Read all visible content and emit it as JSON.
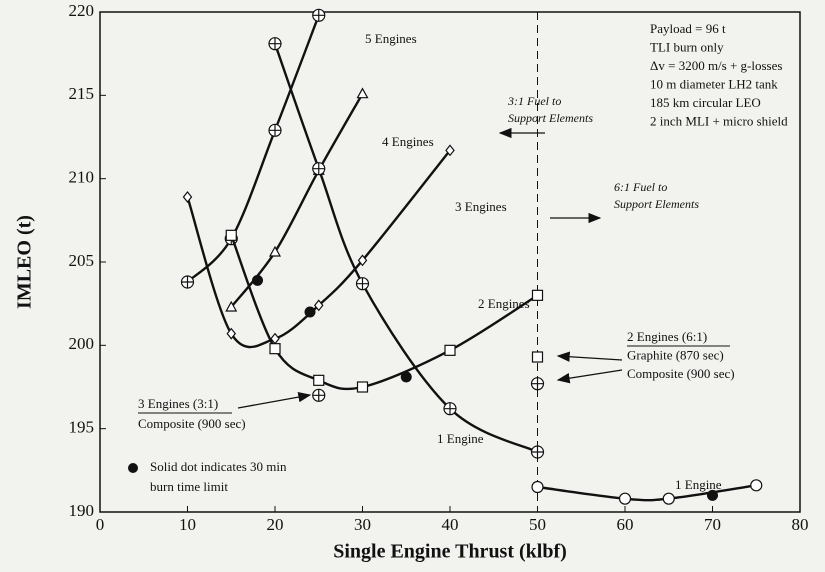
{
  "chart_data": {
    "type": "line",
    "xlabel": "Single Engine Thrust (klbf)",
    "ylabel": "IMLEO (t)",
    "xlim": [
      0,
      80
    ],
    "xticks": [
      0,
      10,
      20,
      30,
      40,
      50,
      60,
      70,
      80
    ],
    "ylim": [
      190,
      220
    ],
    "yticks": [
      190,
      195,
      200,
      205,
      210,
      215,
      220
    ],
    "series": [
      {
        "name": "5 Engines",
        "marker": "circleplus",
        "color": "#111111",
        "x": [
          10,
          15,
          20,
          25
        ],
        "values": [
          203.8,
          206.4,
          212.9,
          219.8
        ]
      },
      {
        "name": "4 Engines",
        "marker": "triangle",
        "color": "#111111",
        "x": [
          15,
          20,
          25,
          30
        ],
        "values": [
          202.3,
          205.6,
          210.5,
          215.1
        ]
      },
      {
        "name": "3 Engines",
        "marker": "diamond",
        "color": "#111111",
        "x": [
          10,
          15,
          20,
          25,
          30,
          40
        ],
        "values": [
          208.9,
          200.7,
          200.4,
          202.4,
          205.1,
          211.7
        ]
      },
      {
        "name": "2 Engines",
        "marker": "square",
        "color": "#111111",
        "x": [
          15,
          20,
          25,
          30,
          40,
          50
        ],
        "values": [
          206.6,
          199.8,
          197.9,
          197.5,
          199.7,
          203.0
        ]
      },
      {
        "name": "1 Engine",
        "marker": "circleplus",
        "color": "#111111",
        "x": [
          20,
          25,
          30,
          40,
          50
        ],
        "values": [
          218.1,
          210.6,
          203.7,
          196.2,
          193.6
        ]
      },
      {
        "name": "1 Engine",
        "marker": "circle",
        "color": "#111111",
        "x": [
          50,
          60,
          65,
          75
        ],
        "values": [
          191.5,
          190.8,
          190.8,
          191.6
        ]
      }
    ],
    "burn_limit_points": {
      "x": [
        18,
        24,
        35,
        70
      ],
      "values": [
        203.9,
        202.0,
        198.1,
        191.0
      ]
    },
    "extra_points": [
      {
        "marker": "square",
        "x": 50,
        "value": 199.3
      },
      {
        "marker": "circleplus",
        "x": 50,
        "value": 197.7
      },
      {
        "marker": "circleplus",
        "x": 25,
        "value": 197.0
      }
    ],
    "divider_x": 50,
    "info_box": [
      "Payload = 96 t",
      "TLI burn only",
      "Δv = 3200 m/s + g-losses",
      "10 m diameter LH2 tank",
      "185 km circular LEO",
      "2 inch MLI + micro shield"
    ],
    "left_region": [
      "3:1 Fuel to",
      "Support Elements"
    ],
    "right_region": [
      "6:1 Fuel to",
      "Support Elements"
    ],
    "annotation_3eng": [
      "3 Engines (3:1)",
      "Composite (900 sec)"
    ],
    "annotation_2eng": [
      "2 Engines (6:1)",
      "Graphite (870 sec)",
      "Composite (900 sec)"
    ],
    "dot_note": [
      "Solid dot indicates 30 min",
      "burn time limit"
    ]
  }
}
